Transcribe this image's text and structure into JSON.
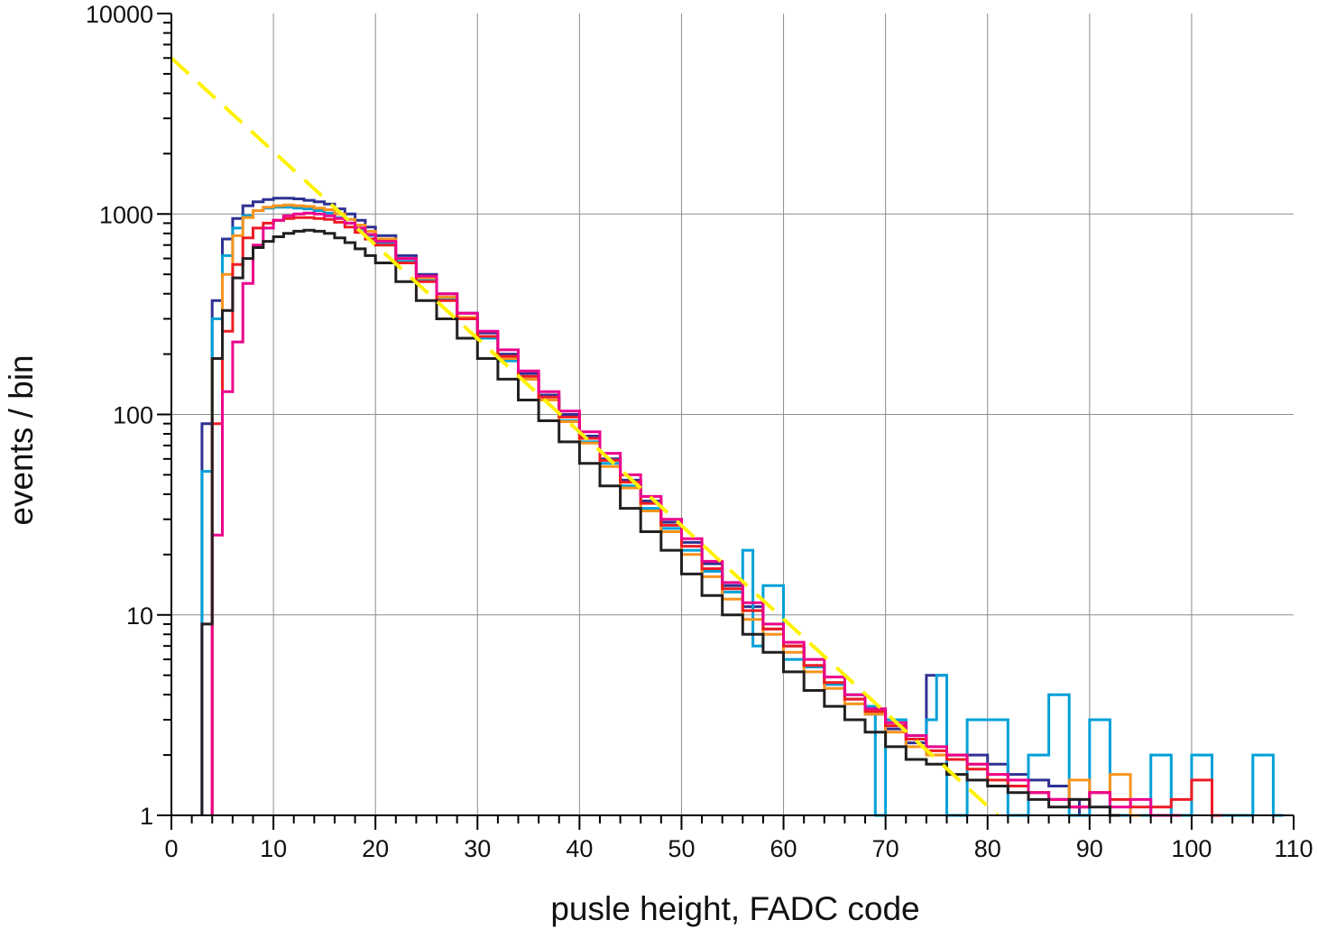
{
  "chart_data": {
    "type": "line",
    "title": "",
    "xlabel": "pusle height, FADC code",
    "ylabel": "events / bin",
    "xlim": [
      0,
      110
    ],
    "ylim": [
      1,
      10000
    ],
    "yscale": "log",
    "grid": true,
    "x_ticks": [
      0,
      10,
      20,
      30,
      40,
      50,
      60,
      70,
      80,
      90,
      100,
      110
    ],
    "x_tick_labels": [
      "0",
      "10",
      "20",
      "30",
      "40",
      "50",
      "60",
      "70",
      "80",
      "90",
      "100",
      "110"
    ],
    "y_ticks": [
      1,
      10,
      100,
      1000,
      10000
    ],
    "y_tick_labels": [
      "1",
      "10",
      "100",
      "1000",
      "10000"
    ],
    "bin_width": 1,
    "series": [
      {
        "color": "#2e3192",
        "style": "step",
        "x": [
          3,
          4,
          5,
          6,
          7,
          8,
          9,
          10,
          11,
          12,
          13,
          14,
          15,
          16,
          17,
          18,
          19,
          20,
          22,
          24,
          26,
          28,
          30,
          32,
          34,
          36,
          38,
          40,
          42,
          44,
          46,
          48,
          50,
          52,
          54,
          56,
          58,
          60,
          62,
          64,
          66,
          68,
          70,
          72,
          74,
          76,
          78,
          80,
          82,
          84,
          86,
          88
        ],
        "y": [
          90,
          370,
          750,
          950,
          1100,
          1150,
          1180,
          1200,
          1200,
          1190,
          1170,
          1150,
          1120,
          1060,
          1000,
          930,
          860,
          780,
          620,
          500,
          400,
          320,
          255,
          200,
          160,
          125,
          100,
          78,
          60,
          47,
          37,
          29,
          23,
          18,
          14,
          11,
          8.5,
          7,
          5.5,
          4.5,
          3.8,
          3.2,
          2.7,
          2.3,
          5,
          2,
          2,
          1.8,
          1.6,
          1.5,
          1.4,
          1.2
        ]
      },
      {
        "color": "#00a0d8",
        "style": "step",
        "x": [
          3,
          4,
          5,
          6,
          7,
          8,
          9,
          10,
          11,
          12,
          13,
          14,
          15,
          16,
          17,
          18,
          19,
          20,
          22,
          24,
          26,
          28,
          30,
          32,
          34,
          36,
          38,
          40,
          42,
          44,
          46,
          48,
          50,
          52,
          54,
          56,
          57,
          58,
          60,
          62,
          64,
          66,
          68,
          69,
          70,
          72,
          74,
          75,
          76,
          78,
          80,
          82,
          84,
          86,
          88,
          90,
          92,
          94,
          96,
          98,
          100,
          102,
          104,
          106,
          108
        ],
        "y": [
          52,
          300,
          620,
          850,
          980,
          1040,
          1070,
          1080,
          1080,
          1070,
          1060,
          1040,
          1010,
          960,
          900,
          840,
          780,
          720,
          580,
          470,
          375,
          300,
          240,
          185,
          150,
          118,
          93,
          73,
          57,
          44,
          34,
          27,
          21,
          16.5,
          13,
          21,
          7,
          14,
          6,
          5.5,
          4.5,
          4,
          3.5,
          1,
          3,
          2.5,
          3,
          5,
          1,
          3,
          3,
          1,
          2,
          4,
          1,
          3,
          1,
          1,
          2,
          1,
          2,
          1,
          1,
          2,
          1
        ]
      },
      {
        "color": "#f7941d",
        "style": "step",
        "x": [
          4,
          5,
          6,
          7,
          8,
          9,
          10,
          11,
          12,
          13,
          14,
          15,
          16,
          17,
          18,
          19,
          20,
          22,
          24,
          26,
          28,
          30,
          32,
          34,
          36,
          38,
          40,
          42,
          44,
          46,
          48,
          50,
          52,
          54,
          56,
          58,
          60,
          62,
          64,
          66,
          68,
          70,
          72,
          74,
          76,
          78,
          80,
          82,
          84,
          86,
          88,
          90,
          92,
          94
        ],
        "y": [
          190,
          500,
          780,
          960,
          1040,
          1080,
          1100,
          1110,
          1100,
          1090,
          1070,
          1050,
          1000,
          940,
          880,
          820,
          750,
          600,
          480,
          385,
          305,
          245,
          190,
          150,
          118,
          92,
          72,
          55,
          43,
          33,
          26,
          20,
          15.5,
          12,
          9.5,
          8,
          6.5,
          5.2,
          4.3,
          3.6,
          3.2,
          2.6,
          2.2,
          2,
          2,
          1.8,
          1.6,
          1.4,
          1.3,
          1.2,
          1.5,
          1.3,
          1.6,
          1
        ]
      },
      {
        "color": "#ed1c24",
        "style": "step",
        "x": [
          4,
          5,
          6,
          7,
          8,
          9,
          10,
          11,
          12,
          13,
          14,
          15,
          16,
          17,
          18,
          19,
          20,
          22,
          24,
          26,
          28,
          30,
          32,
          34,
          36,
          38,
          40,
          42,
          44,
          46,
          48,
          50,
          52,
          54,
          56,
          58,
          60,
          62,
          64,
          66,
          68,
          70,
          72,
          74,
          76,
          78,
          80,
          82,
          84,
          86,
          88,
          90,
          92,
          94,
          96,
          98,
          100,
          102
        ],
        "y": [
          90,
          260,
          560,
          760,
          850,
          900,
          930,
          950,
          960,
          960,
          950,
          940,
          910,
          860,
          810,
          750,
          700,
          570,
          460,
          370,
          300,
          245,
          195,
          155,
          122,
          97,
          76,
          59,
          46,
          36,
          28,
          22,
          17,
          13.5,
          10.5,
          8.5,
          7,
          5.6,
          4.6,
          3.8,
          3.3,
          2.8,
          2.4,
          2.1,
          1.9,
          1.7,
          1.5,
          1.4,
          1.3,
          1.2,
          1.1,
          1.3,
          1.2,
          1.1,
          1.1,
          1.2,
          1.5,
          1
        ]
      },
      {
        "color": "#ec008c",
        "style": "step",
        "x": [
          4,
          5,
          6,
          7,
          8,
          9,
          10,
          11,
          12,
          13,
          14,
          15,
          16,
          17,
          18,
          19,
          20,
          22,
          24,
          26,
          28,
          30,
          32,
          34,
          36,
          38,
          40,
          42,
          44,
          46,
          48,
          50,
          52,
          54,
          56,
          58,
          60,
          62,
          64,
          66,
          68,
          70,
          72,
          74,
          76,
          78,
          80,
          82,
          84,
          86,
          88,
          90,
          92,
          94,
          96,
          98
        ],
        "y": [
          25,
          130,
          230,
          450,
          700,
          850,
          930,
          980,
          1000,
          1010,
          1000,
          980,
          950,
          900,
          850,
          790,
          730,
          600,
          490,
          400,
          320,
          260,
          210,
          165,
          130,
          104,
          82,
          64,
          50,
          39,
          30,
          24,
          18.5,
          14.5,
          11.5,
          9,
          7.3,
          6,
          4.9,
          4,
          3.4,
          2.9,
          2.5,
          2.2,
          2,
          1.8,
          1.6,
          1.5,
          1.3,
          1.2,
          1.1,
          1.3,
          1.1,
          1.2,
          1,
          1
        ]
      },
      {
        "color": "#231f20",
        "style": "step",
        "x": [
          3,
          4,
          5,
          6,
          7,
          8,
          9,
          10,
          11,
          12,
          13,
          14,
          15,
          16,
          17,
          18,
          19,
          20,
          22,
          24,
          26,
          28,
          30,
          32,
          34,
          36,
          38,
          40,
          42,
          44,
          46,
          48,
          50,
          52,
          54,
          56,
          58,
          60,
          62,
          64,
          66,
          68,
          70,
          72,
          74,
          76,
          78,
          80,
          82,
          84,
          86,
          88,
          90,
          92
        ],
        "y": [
          9,
          190,
          330,
          480,
          600,
          680,
          730,
          770,
          800,
          820,
          830,
          820,
          800,
          760,
          720,
          670,
          620,
          570,
          460,
          370,
          300,
          240,
          190,
          150,
          118,
          93,
          73,
          57,
          44,
          34,
          26,
          21,
          16,
          12.5,
          10,
          8,
          6.5,
          5.2,
          4.2,
          3.5,
          3,
          2.6,
          2.2,
          1.9,
          1.8,
          1.6,
          1.5,
          1.4,
          1.3,
          1.2,
          1.1,
          1.2,
          1.1,
          1
        ]
      },
      {
        "color": "#fff200",
        "style": "dashed",
        "x": [
          0,
          81
        ],
        "y": [
          6000,
          1
        ]
      }
    ]
  }
}
